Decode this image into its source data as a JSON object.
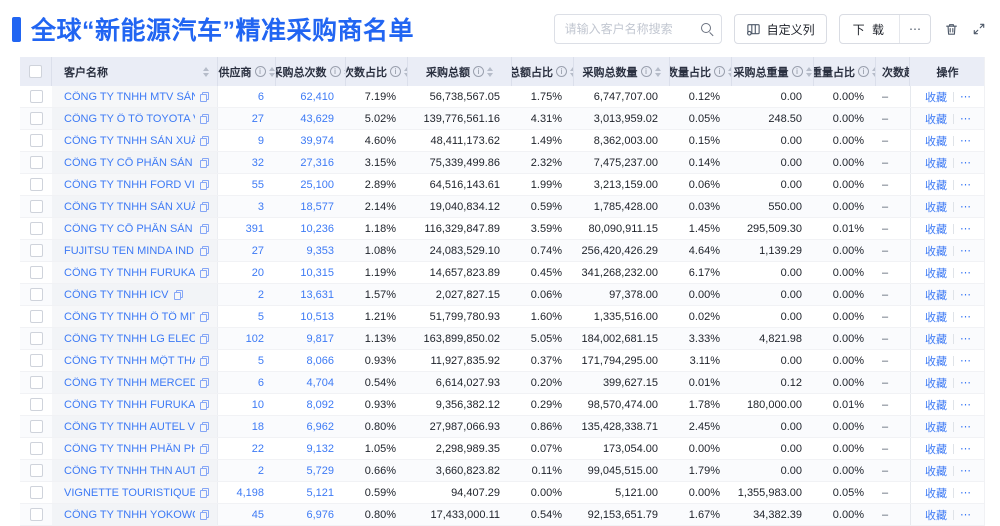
{
  "page": {
    "title": "全球“新能源汽车”精准采购商名单"
  },
  "toolbar": {
    "search_placeholder": "请输入客户名称搜索",
    "customize_columns_label": "自定义列",
    "download_label": "下 载",
    "more_label": "⋯",
    "icons": {
      "search_icon": "magnifier",
      "customize_columns_icon": "table-columns-gear",
      "delete_icon": "trash-can",
      "fullscreen_icon": "expand-arrows"
    }
  },
  "colors": {
    "accent": "#2165f2",
    "link": "#3d7af5",
    "header_bg": "#eaedf6"
  },
  "table": {
    "columns": [
      {
        "key": "name",
        "label": "客户名称",
        "info": false,
        "sort": true
      },
      {
        "key": "sup",
        "label": "供应商",
        "info": true,
        "sort": true
      },
      {
        "key": "cnt",
        "label": "采购总次数",
        "info": true,
        "sort": true
      },
      {
        "key": "cnt_pct",
        "label": "次数占比",
        "info": true,
        "sort": true
      },
      {
        "key": "amt",
        "label": "采购总额",
        "info": true,
        "sort": true
      },
      {
        "key": "amt_pct",
        "label": "总额占比",
        "info": true,
        "sort": true
      },
      {
        "key": "qty",
        "label": "采购总数量",
        "info": true,
        "sort": true
      },
      {
        "key": "qty_pct",
        "label": "数量占比",
        "info": true,
        "sort": true
      },
      {
        "key": "wgt",
        "label": "采购总重量",
        "info": true,
        "sort": true
      },
      {
        "key": "wgt_pct",
        "label": "重量占比",
        "info": true,
        "sort": true
      },
      {
        "key": "trend",
        "label": "次数趋势",
        "info": false,
        "sort": false
      },
      {
        "key": "op",
        "label": "操作",
        "info": false,
        "sort": false
      }
    ],
    "trend_dash": "–",
    "actions": {
      "favorite": "收藏",
      "more": "⋯"
    },
    "rows": [
      {
        "name": "CÔNG TY TNHH MTV SẢN XUẤ...",
        "sup": "6",
        "cnt": "62,410",
        "cnt_pct": "7.19%",
        "amt": "56,738,567.05",
        "amt_pct": "1.75%",
        "qty": "6,747,707.00",
        "qty_pct": "0.12%",
        "wgt": "0.00",
        "wgt_pct": "0.00%"
      },
      {
        "name": "CÔNG TY Ô TÔ TOYOTA VIỆT ...",
        "sup": "27",
        "cnt": "43,629",
        "cnt_pct": "5.02%",
        "amt": "139,776,561.16",
        "amt_pct": "4.31%",
        "qty": "3,013,959.02",
        "qty_pct": "0.05%",
        "wgt": "248.50",
        "wgt_pct": "0.00%"
      },
      {
        "name": "CÔNG TY TNHH SẢN XUẤT VÀ ...",
        "sup": "9",
        "cnt": "39,974",
        "cnt_pct": "4.60%",
        "amt": "48,411,173.62",
        "amt_pct": "1.49%",
        "qty": "8,362,003.00",
        "qty_pct": "0.15%",
        "wgt": "0.00",
        "wgt_pct": "0.00%"
      },
      {
        "name": "CÔNG TY CỔ PHẦN SẢN XUẤT...",
        "sup": "32",
        "cnt": "27,316",
        "cnt_pct": "3.15%",
        "amt": "75,339,499.86",
        "amt_pct": "2.32%",
        "qty": "7,475,237.00",
        "qty_pct": "0.14%",
        "wgt": "0.00",
        "wgt_pct": "0.00%"
      },
      {
        "name": "CÔNG TY TNHH FORD VIỆT NAM",
        "sup": "55",
        "cnt": "25,100",
        "cnt_pct": "2.89%",
        "amt": "64,516,143.61",
        "amt_pct": "1.99%",
        "qty": "3,213,159.00",
        "qty_pct": "0.06%",
        "wgt": "0.00",
        "wgt_pct": "0.00%"
      },
      {
        "name": "CÔNG TY TNHH SẢN XUẤT VÀ ...",
        "sup": "3",
        "cnt": "18,577",
        "cnt_pct": "2.14%",
        "amt": "19,040,834.12",
        "amt_pct": "0.59%",
        "qty": "1,785,428.00",
        "qty_pct": "0.03%",
        "wgt": "550.00",
        "wgt_pct": "0.00%"
      },
      {
        "name": "CÔNG TY CỔ PHẦN SẢN XUẤT...",
        "sup": "391",
        "cnt": "10,236",
        "cnt_pct": "1.18%",
        "amt": "116,329,847.89",
        "amt_pct": "3.59%",
        "qty": "80,090,911.15",
        "qty_pct": "1.45%",
        "wgt": "295,509.30",
        "wgt_pct": "0.01%"
      },
      {
        "name": "FUJITSU TEN MINDA INDIA PVT...",
        "sup": "27",
        "cnt": "9,353",
        "cnt_pct": "1.08%",
        "amt": "24,083,529.10",
        "amt_pct": "0.74%",
        "qty": "256,420,426.29",
        "qty_pct": "4.64%",
        "wgt": "1,139.29",
        "wgt_pct": "0.00%"
      },
      {
        "name": "CÔNG TY TNHH FURUKAWA A...",
        "sup": "20",
        "cnt": "10,315",
        "cnt_pct": "1.19%",
        "amt": "14,657,823.89",
        "amt_pct": "0.45%",
        "qty": "341,268,232.00",
        "qty_pct": "6.17%",
        "wgt": "0.00",
        "wgt_pct": "0.00%"
      },
      {
        "name": "CÔNG TY TNHH ICV",
        "sup": "2",
        "cnt": "13,631",
        "cnt_pct": "1.57%",
        "amt": "2,027,827.15",
        "amt_pct": "0.06%",
        "qty": "97,378.00",
        "qty_pct": "0.00%",
        "wgt": "0.00",
        "wgt_pct": "0.00%"
      },
      {
        "name": "CÔNG TY TNHH Ô TÔ MITSUBI...",
        "sup": "5",
        "cnt": "10,513",
        "cnt_pct": "1.21%",
        "amt": "51,799,780.93",
        "amt_pct": "1.60%",
        "qty": "1,335,516.00",
        "qty_pct": "0.02%",
        "wgt": "0.00",
        "wgt_pct": "0.00%"
      },
      {
        "name": "CÔNG TY TNHH LG ELECTRON...",
        "sup": "102",
        "cnt": "9,817",
        "cnt_pct": "1.13%",
        "amt": "163,899,850.02",
        "amt_pct": "5.05%",
        "qty": "184,002,681.15",
        "qty_pct": "3.33%",
        "wgt": "4,821.98",
        "wgt_pct": "0.00%"
      },
      {
        "name": "CÔNG TY TNHH MỘT THÀNH V...",
        "sup": "5",
        "cnt": "8,066",
        "cnt_pct": "0.93%",
        "amt": "11,927,835.92",
        "amt_pct": "0.37%",
        "qty": "171,794,295.00",
        "qty_pct": "3.11%",
        "wgt": "0.00",
        "wgt_pct": "0.00%"
      },
      {
        "name": "CÔNG TY TNHH MERCEDES-B...",
        "sup": "6",
        "cnt": "4,704",
        "cnt_pct": "0.54%",
        "amt": "6,614,027.93",
        "amt_pct": "0.20%",
        "qty": "399,627.15",
        "qty_pct": "0.01%",
        "wgt": "0.12",
        "wgt_pct": "0.00%"
      },
      {
        "name": "CÔNG TY TNHH FURUKAWA A...",
        "sup": "10",
        "cnt": "8,092",
        "cnt_pct": "0.93%",
        "amt": "9,356,382.12",
        "amt_pct": "0.29%",
        "qty": "98,570,474.00",
        "qty_pct": "1.78%",
        "wgt": "180,000.00",
        "wgt_pct": "0.01%"
      },
      {
        "name": "CÔNG TY TNHH AUTEL VIỆT N...",
        "sup": "18",
        "cnt": "6,962",
        "cnt_pct": "0.80%",
        "amt": "27,987,066.93",
        "amt_pct": "0.86%",
        "qty": "135,428,338.71",
        "qty_pct": "2.45%",
        "wgt": "0.00",
        "wgt_pct": "0.00%"
      },
      {
        "name": "CÔNG TY TNHH PHÂN PHỐI T...",
        "sup": "22",
        "cnt": "9,132",
        "cnt_pct": "1.05%",
        "amt": "2,298,989.35",
        "amt_pct": "0.07%",
        "qty": "173,054.00",
        "qty_pct": "0.00%",
        "wgt": "0.00",
        "wgt_pct": "0.00%"
      },
      {
        "name": "CÔNG TY TNHH THN AUTOPAR...",
        "sup": "2",
        "cnt": "5,729",
        "cnt_pct": "0.66%",
        "amt": "3,660,823.82",
        "amt_pct": "0.11%",
        "qty": "99,045,515.00",
        "qty_pct": "1.79%",
        "wgt": "0.00",
        "wgt_pct": "0.00%"
      },
      {
        "name": "VIGNETTE TOURISTIQUE G UNI...",
        "sup": "4,198",
        "cnt": "5,121",
        "cnt_pct": "0.59%",
        "amt": "94,407.29",
        "amt_pct": "0.00%",
        "qty": "5,121.00",
        "qty_pct": "0.00%",
        "wgt": "1,355,983.00",
        "wgt_pct": "0.05%"
      },
      {
        "name": "CÔNG TY TNHH YOKOWO VIỆT...",
        "sup": "45",
        "cnt": "6,976",
        "cnt_pct": "0.80%",
        "amt": "17,433,000.11",
        "amt_pct": "0.54%",
        "qty": "92,153,651.79",
        "qty_pct": "1.67%",
        "wgt": "34,382.39",
        "wgt_pct": "0.00%"
      }
    ]
  }
}
